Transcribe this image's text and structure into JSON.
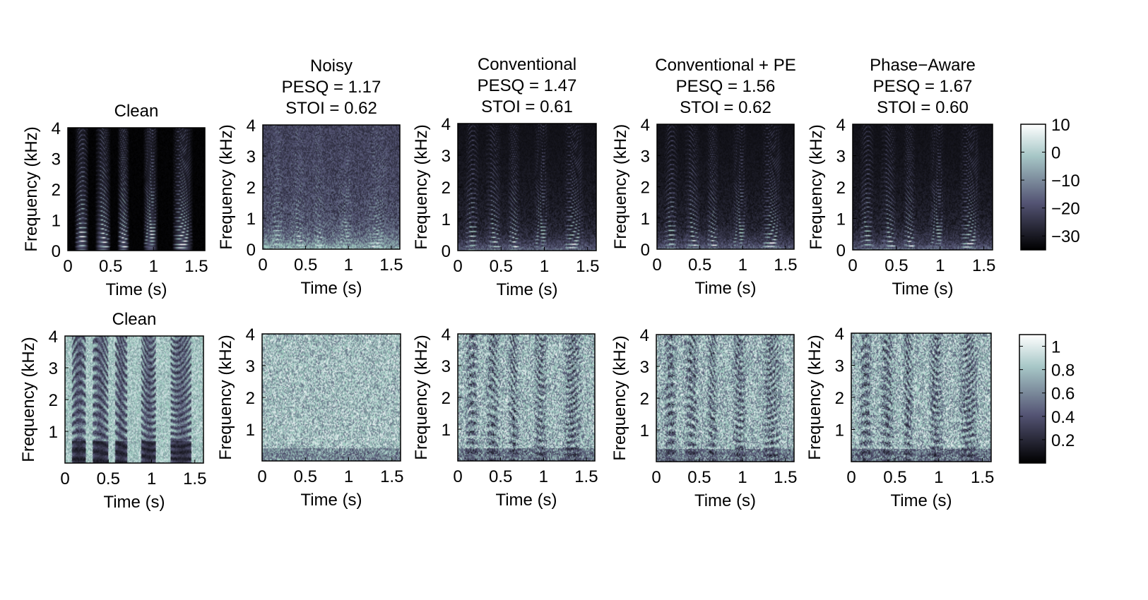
{
  "chart_data": {
    "type": "heatmap",
    "xlabel": "Time (s)",
    "ylabel": "Frequency (kHz)",
    "x_ticks": [
      "0",
      "0.5",
      "1",
      "1.5"
    ],
    "xlim": [
      0,
      1.6
    ],
    "ylim": [
      0,
      4
    ],
    "y_ticks_row1": [
      "0",
      "1",
      "2",
      "3",
      "4"
    ],
    "y_ticks_row2": [
      "1",
      "2",
      "3",
      "4"
    ],
    "colormap": "bone",
    "panels": [
      {
        "row": 1,
        "title_lines": [
          "Clean"
        ],
        "kind": "clean-mag"
      },
      {
        "row": 1,
        "title_lines": [
          "Noisy",
          "PESQ = 1.17",
          "STOI = 0.62"
        ],
        "kind": "noisy-mag"
      },
      {
        "row": 1,
        "title_lines": [
          "Conventional",
          "PESQ = 1.47",
          "STOI = 0.61"
        ],
        "kind": "enh-mag"
      },
      {
        "row": 1,
        "title_lines": [
          "Conventional + PE",
          "PESQ = 1.56",
          "STOI = 0.62"
        ],
        "kind": "enh-mag"
      },
      {
        "row": 1,
        "title_lines": [
          "Phase−Aware",
          "PESQ = 1.67",
          "STOI = 0.60"
        ],
        "kind": "enh-mag"
      },
      {
        "row": 2,
        "title_lines": [
          "Clean"
        ],
        "kind": "clean-phase"
      },
      {
        "row": 2,
        "title_lines": [],
        "kind": "noisy-phase"
      },
      {
        "row": 2,
        "title_lines": [],
        "kind": "enh-phase"
      },
      {
        "row": 2,
        "title_lines": [],
        "kind": "enh-phase"
      },
      {
        "row": 2,
        "title_lines": [],
        "kind": "enh-phase"
      }
    ],
    "colorbars": [
      {
        "row": 1,
        "ticks": [
          "10",
          "0",
          "−10",
          "−20",
          "−30"
        ],
        "range": [
          -35,
          10
        ]
      },
      {
        "row": 2,
        "ticks": [
          "1",
          "0.8",
          "0.6",
          "0.4",
          "0.2"
        ],
        "range": [
          0,
          1.1
        ]
      }
    ]
  }
}
